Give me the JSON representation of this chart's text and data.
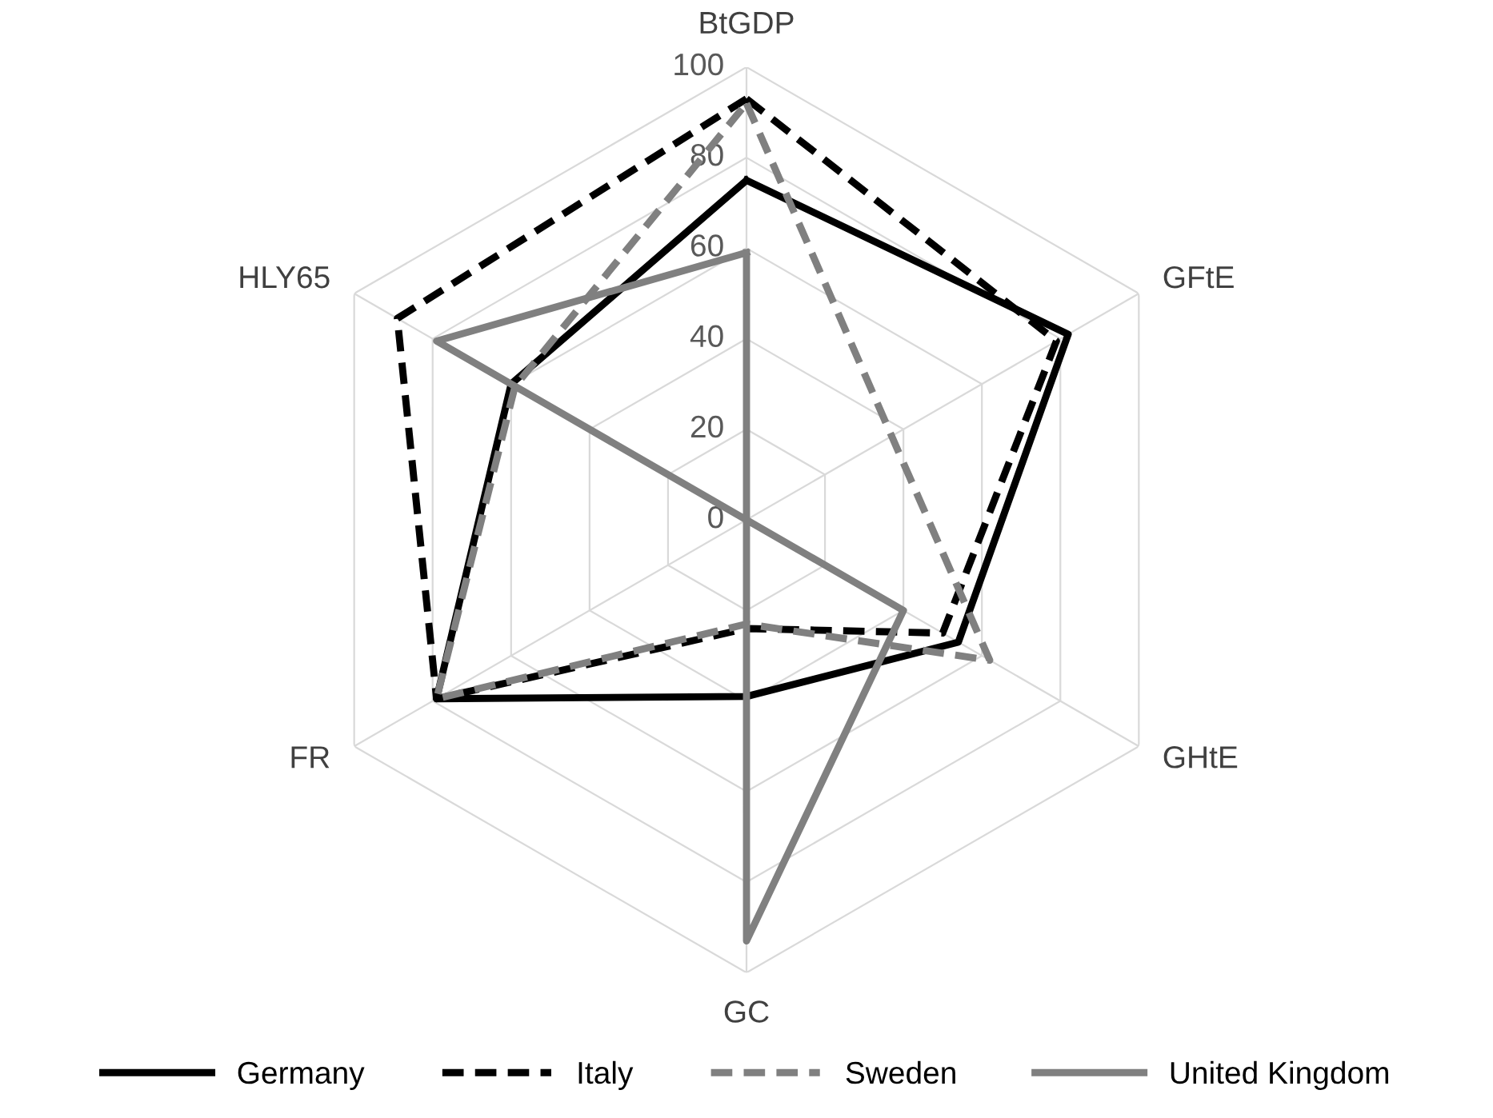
{
  "chart_data": {
    "type": "radar",
    "categories": [
      "BtGDP",
      "GFtE",
      "GHtE",
      "GC",
      "FR",
      "HLY65"
    ],
    "ylim": [
      0,
      100
    ],
    "yticks": [
      0,
      20,
      40,
      60,
      80,
      100
    ],
    "grid": true,
    "legend": "bottom",
    "marker": "none",
    "series": [
      {
        "name": "Germany",
        "color": "#000000",
        "line_style": "solid",
        "values": [
          75,
          82,
          54,
          39,
          79,
          60
        ]
      },
      {
        "name": "Italy",
        "color": "#000000",
        "line_style": "dashed",
        "values": [
          93,
          79,
          50,
          24,
          79,
          89
        ]
      },
      {
        "name": "Sweden",
        "color": "#808080",
        "line_style": "dashed",
        "values": [
          92,
          37,
          62,
          23,
          79,
          59
        ]
      },
      {
        "name": "United Kingdom",
        "color": "#808080",
        "line_style": "solid",
        "values": [
          59,
          0,
          40,
          93,
          0,
          79
        ]
      }
    ]
  }
}
